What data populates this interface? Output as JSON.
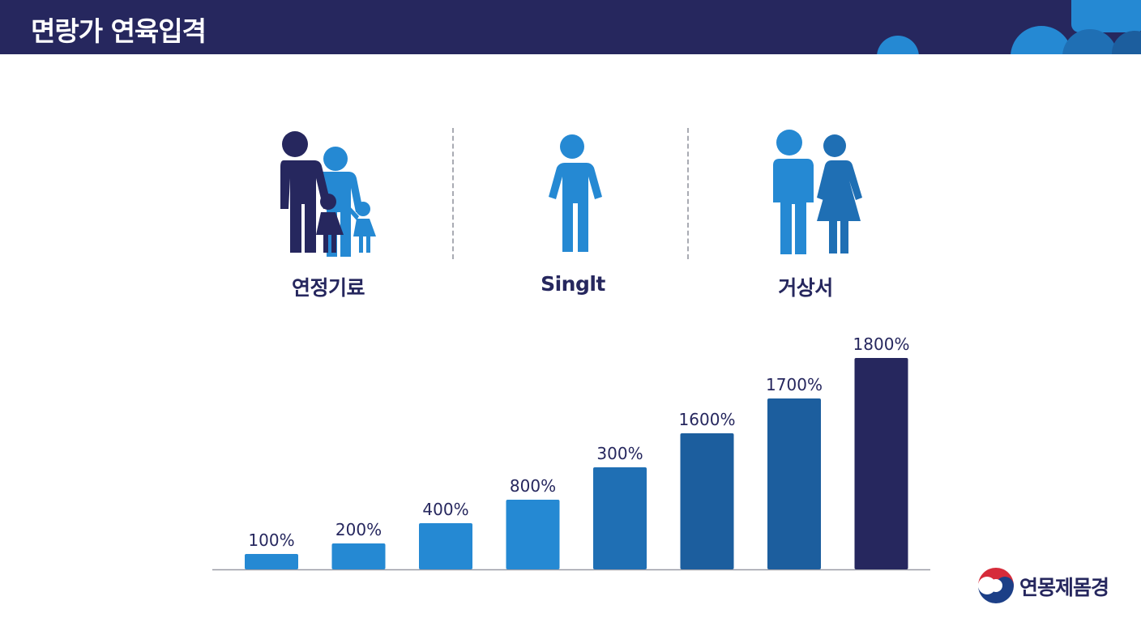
{
  "header": {
    "title": "면랑가 연육입격"
  },
  "categories": [
    {
      "label": "연정기료",
      "icon": "family-icon"
    },
    {
      "label": "Singlt",
      "icon": "single-person-icon"
    },
    {
      "label": "거상서",
      "icon": "couple-icon"
    }
  ],
  "colors": {
    "navy": "#26275e",
    "blue": "#2589d3",
    "blue_mid": "#1f6fb4",
    "blue_dark": "#1c5e9e"
  },
  "chart_data": {
    "type": "bar",
    "values": [
      100,
      200,
      400,
      800,
      300,
      1600,
      1700,
      1800
    ],
    "labels": [
      "100%",
      "200%",
      "400%",
      "800%",
      "300%",
      "1600%",
      "1700%",
      "1800%"
    ],
    "bar_colors": [
      "#2589d3",
      "#2589d3",
      "#2589d3",
      "#2589d3",
      "#1f6fb4",
      "#1c5e9e",
      "#1c5e9e",
      "#26275e"
    ],
    "grid": false,
    "legend": "none"
  },
  "logo": {
    "text": "연몽제몸경",
    "icon": "government-emblem-icon"
  }
}
